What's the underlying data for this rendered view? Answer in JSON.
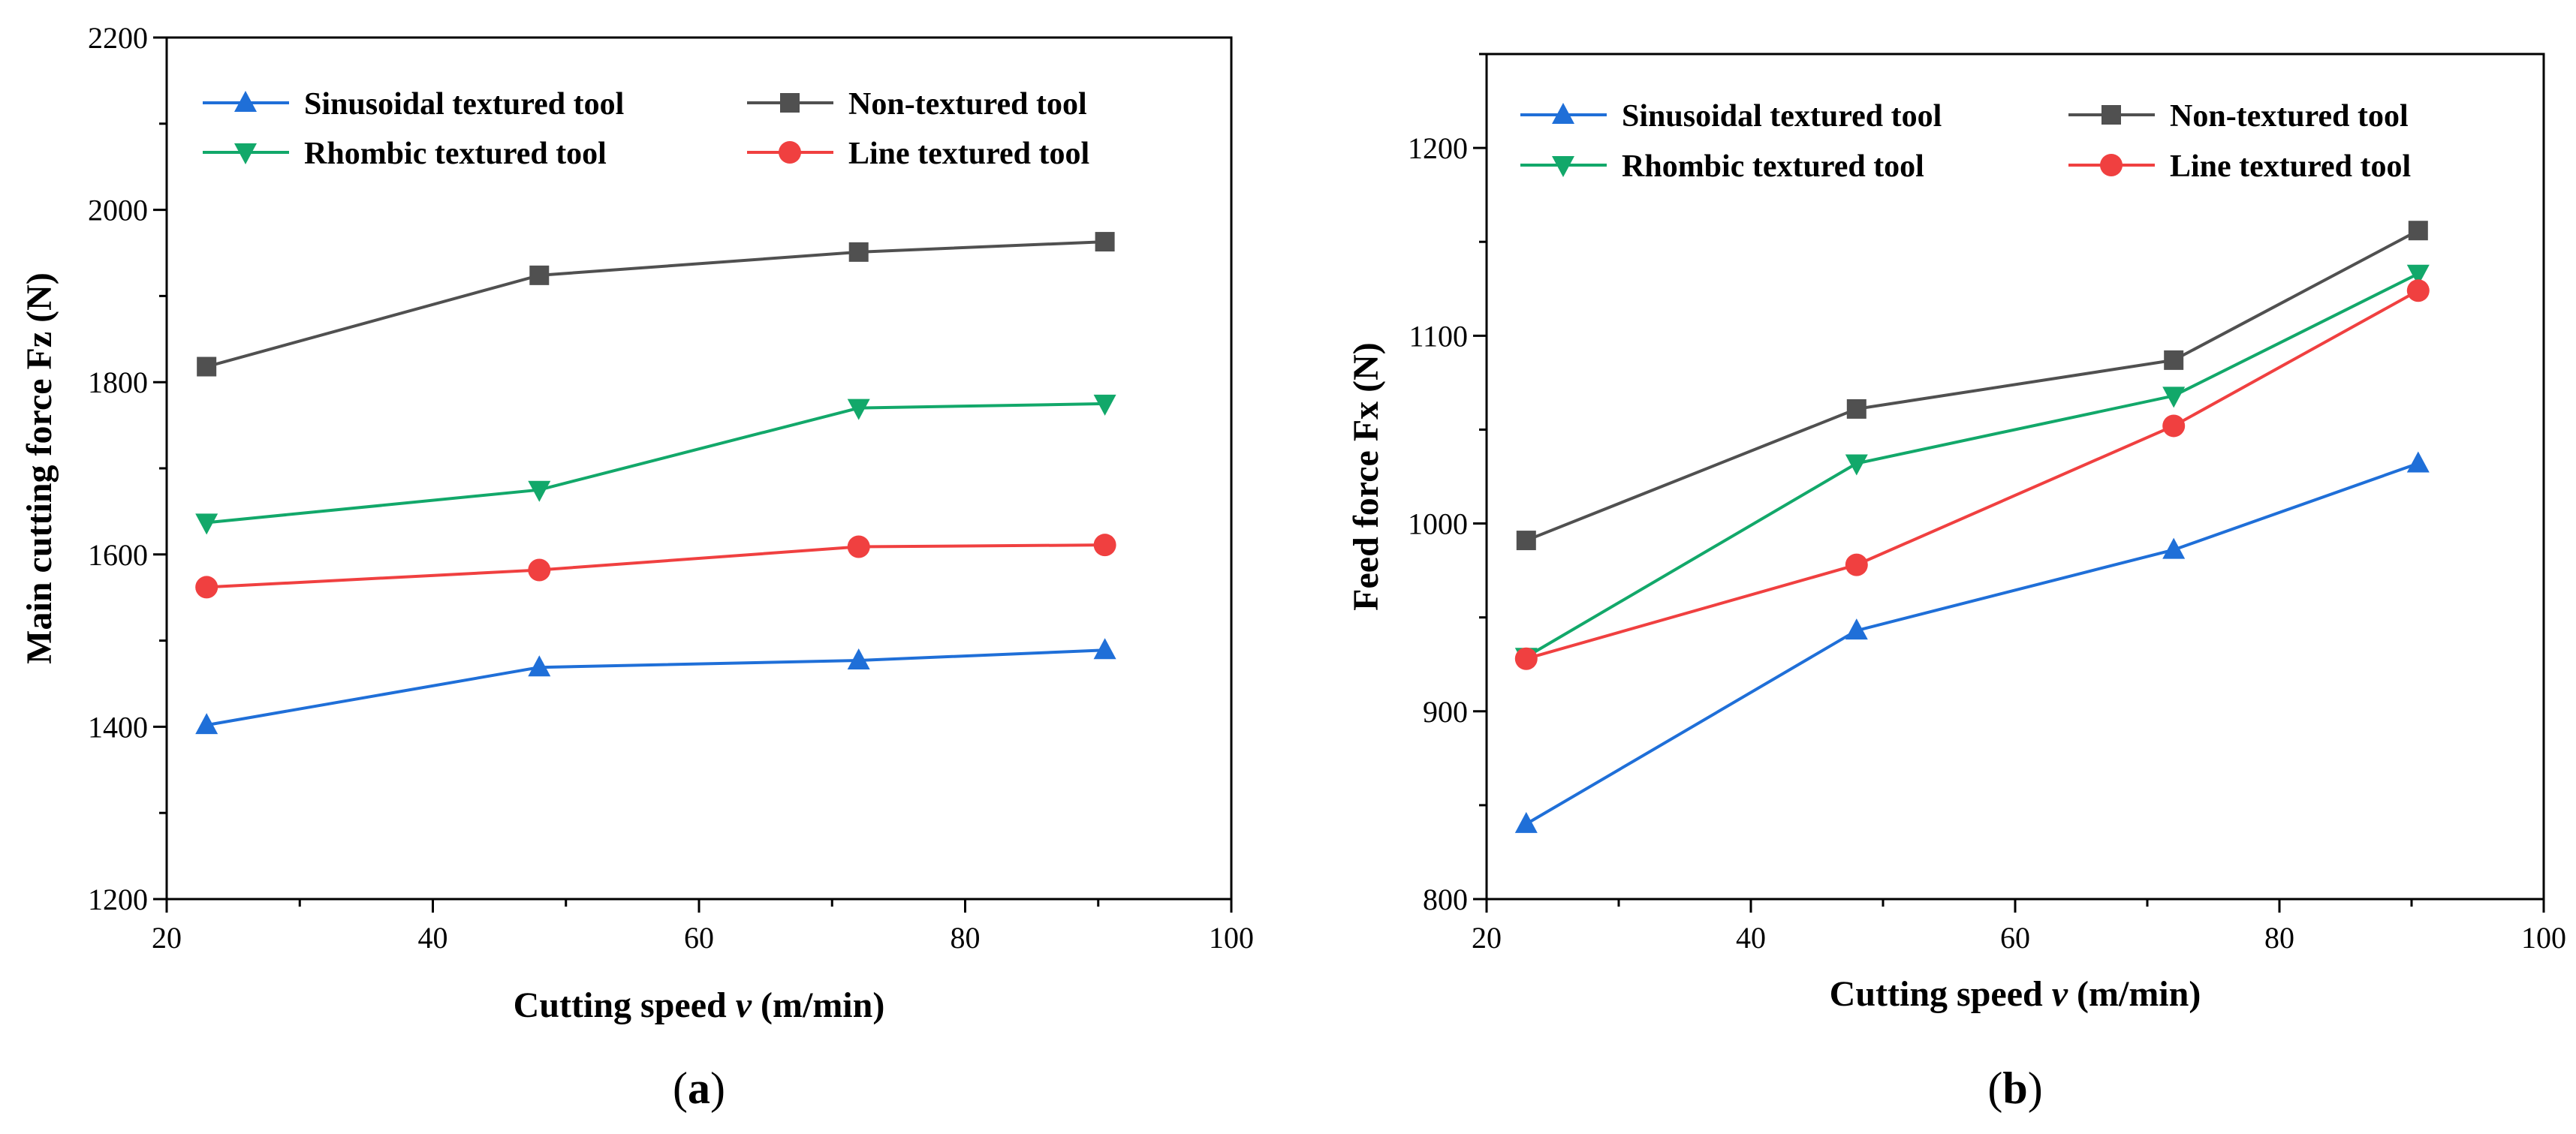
{
  "chart_data": [
    {
      "type": "line",
      "panel_label_prefix": "(",
      "panel_label_letter": "a",
      "panel_label_suffix": ")",
      "xlabel_part1": "Cutting  speed ",
      "xlabel_var": "v",
      "xlabel_part2": " (m/min)",
      "ylabel": "Main  cutting  force Fz (N)",
      "xlim": [
        20,
        100
      ],
      "ylim": [
        1200,
        2200
      ],
      "xticks": [
        20,
        40,
        60,
        80,
        100
      ],
      "yticks": [
        1200,
        1400,
        1600,
        1800,
        2000,
        2200
      ],
      "legend_position": "top",
      "series": [
        {
          "name": "Sinusoidal textured tool",
          "color": "#1f6fd8",
          "marker": "triangle-up",
          "x": [
            23,
            48,
            72,
            90.5
          ],
          "values": [
            1402,
            1469,
            1477,
            1489
          ]
        },
        {
          "name": "Non-textured tool",
          "color": "#505050",
          "marker": "square",
          "x": [
            23,
            48,
            72,
            90.5
          ],
          "values": [
            1818,
            1924,
            1951,
            1963
          ]
        },
        {
          "name": "Rhombic textured tool",
          "color": "#12a86a",
          "marker": "triangle-down",
          "x": [
            23,
            48,
            72,
            90.5
          ],
          "values": [
            1637,
            1675,
            1770,
            1775
          ]
        },
        {
          "name": "Line textured tool",
          "color": "#f04040",
          "marker": "circle",
          "x": [
            23,
            48,
            72,
            90.5
          ],
          "values": [
            1562,
            1582,
            1609,
            1611
          ]
        }
      ]
    },
    {
      "type": "line",
      "panel_label_prefix": "(",
      "panel_label_letter": "b",
      "panel_label_suffix": ")",
      "xlabel_part1": "Cutting speed ",
      "xlabel_var": "v",
      "xlabel_part2": " (m/min)",
      "ylabel": "Feed  force Fx  (N)",
      "xlim": [
        20,
        100
      ],
      "ylim": [
        800,
        1250
      ],
      "xticks": [
        20,
        40,
        60,
        80,
        100
      ],
      "yticks": [
        800,
        900,
        1000,
        1100,
        1200
      ],
      "legend_position": "top",
      "series": [
        {
          "name": "Sinusoidal textured tool",
          "color": "#1f6fd8",
          "marker": "triangle-up",
          "x": [
            23,
            48,
            72,
            90.5
          ],
          "values": [
            840,
            943,
            986,
            1032
          ]
        },
        {
          "name": "Non-textured tool",
          "color": "#505050",
          "marker": "square",
          "x": [
            23,
            48,
            72,
            90.5
          ],
          "values": [
            991,
            1061,
            1087,
            1156
          ]
        },
        {
          "name": "Rhombic textured tool",
          "color": "#12a86a",
          "marker": "triangle-down",
          "x": [
            23,
            48,
            72,
            90.5
          ],
          "values": [
            929,
            1032,
            1068,
            1133
          ]
        },
        {
          "name": "Line textured tool",
          "color": "#f04040",
          "marker": "circle",
          "x": [
            23,
            48,
            72,
            90.5
          ],
          "values": [
            928,
            978,
            1052,
            1124
          ]
        }
      ]
    }
  ]
}
